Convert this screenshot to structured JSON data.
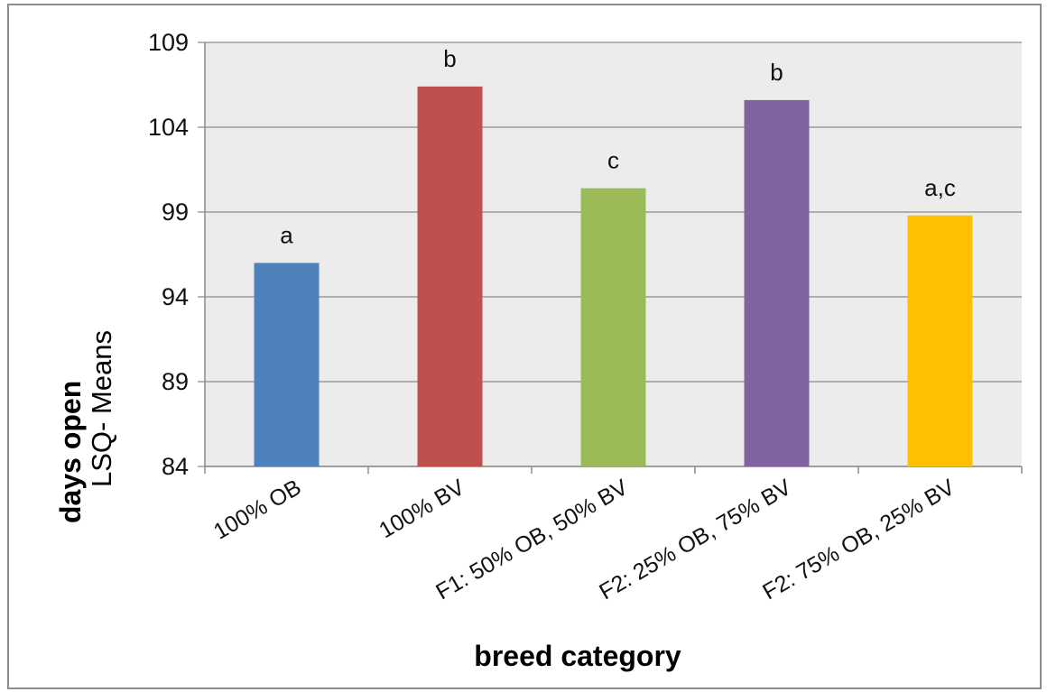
{
  "chart_data": {
    "type": "bar",
    "title": "",
    "xlabel": "breed category",
    "ylabel_bold": "days open",
    "ylabel_normal": "LSQ- Means",
    "categories": [
      "100% OB",
      "100% BV",
      "F1: 50% OB, 50% BV",
      "F2: 25% OB, 75% BV",
      "F2: 75% OB, 25% BV"
    ],
    "values": [
      96.0,
      106.4,
      100.4,
      105.6,
      98.8
    ],
    "data_labels": [
      "a",
      "b",
      "c",
      "b",
      "a,c"
    ],
    "colors": [
      "#4f81bd",
      "#c0504d",
      "#9bbb59",
      "#8064a2",
      "#ffc000"
    ],
    "yticks": [
      "84",
      "89",
      "94",
      "99",
      "104",
      "109"
    ],
    "ylim": [
      84,
      109
    ],
    "grid": true,
    "plot_background": "#ececec"
  }
}
